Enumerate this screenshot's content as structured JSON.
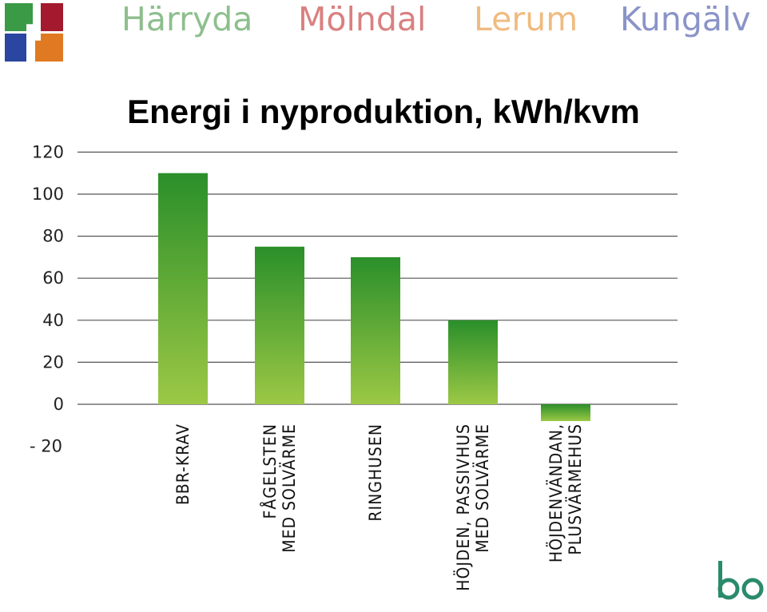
{
  "header": {
    "municipalities": [
      {
        "name": "Härryda",
        "color": "#8dbf8d"
      },
      {
        "name": "Mölndal",
        "color": "#d98080"
      },
      {
        "name": "Lerum",
        "color": "#f0bb80"
      },
      {
        "name": "Kungälv",
        "color": "#8a94c8"
      }
    ],
    "logo_colors": [
      "#3a9a45",
      "#a3192e",
      "#2a46a0",
      "#e07a22"
    ]
  },
  "brand": {
    "mark": "bo",
    "color": "#2a8a6c"
  },
  "chart_data": {
    "type": "bar",
    "title": "Energi i nyproduktion, kWh/kvm",
    "xlabel": "",
    "ylabel": "",
    "categories": [
      [
        "BBR-KRAV"
      ],
      [
        "FÅGELSTEN",
        "MED SOLVÄRME"
      ],
      [
        "RINGHUSEN"
      ],
      [
        "HÖJDEN, PASSIVHUS",
        "MED SOLVÄRME"
      ],
      [
        "HÖJDENVÄNDAN,",
        "PLUSVÄRMEHUS"
      ]
    ],
    "values": [
      110,
      75,
      70,
      40,
      -8
    ],
    "ylim": [
      -20,
      120
    ],
    "yticks": [
      120,
      100,
      80,
      60,
      40,
      20,
      0
    ],
    "ytick_labels": [
      "120",
      "100",
      "80",
      "60",
      "40",
      "20",
      "0"
    ],
    "neg_tick_label": "- 20",
    "grid": true,
    "bar_color_top": "#2a8f2a",
    "bar_color_bottom": "#9cc845"
  }
}
